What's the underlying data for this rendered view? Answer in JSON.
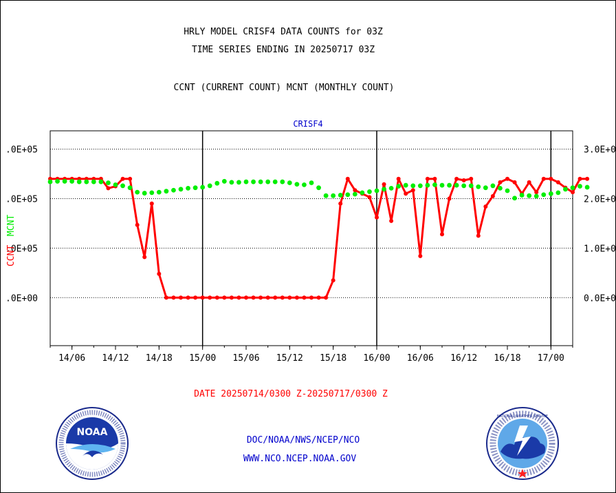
{
  "header": {
    "title_line1": "HRLY MODEL CRISF4 DATA COUNTS for 03Z",
    "title_line2": "TIME SERIES ENDING IN 20250717 03Z",
    "subtitle": "CCNT (CURRENT COUNT) MCNT (MONTHLY COUNT)"
  },
  "footer": {
    "date_range": "DATE 20250714/0300 Z-20250717/0300 Z",
    "org_path": "DOC/NOAA/NWS/NCEP/NCO",
    "website": "WWW.NCO.NCEP.NOAA.GOV"
  },
  "logos": {
    "left_text": "NOAA",
    "right_text": "NATIONAL WEATHER SERVICE"
  },
  "colors": {
    "ccnt": "#ff0000",
    "mcnt": "#00ee00",
    "title": "#000000",
    "station": "#0000cc",
    "footer_date": "#ff0000",
    "footer_links": "#0000cc"
  },
  "chart_data": {
    "type": "line",
    "title": "CRISF4",
    "ylabel_left": "CCNT",
    "ylabel_right": "MCNT",
    "x_start_hour": 3,
    "x_end_hour": 75,
    "xticks": [
      {
        "hour": 6,
        "label": "14/06"
      },
      {
        "hour": 12,
        "label": "14/12"
      },
      {
        "hour": 18,
        "label": "14/18"
      },
      {
        "hour": 24,
        "label": "15/00"
      },
      {
        "hour": 30,
        "label": "15/06"
      },
      {
        "hour": 36,
        "label": "15/12"
      },
      {
        "hour": 42,
        "label": "15/18"
      },
      {
        "hour": 48,
        "label": "16/00"
      },
      {
        "hour": 54,
        "label": "16/06"
      },
      {
        "hour": 60,
        "label": "16/12"
      },
      {
        "hour": 66,
        "label": "16/18"
      },
      {
        "hour": 72,
        "label": "17/00"
      }
    ],
    "day_lines": [
      24,
      48,
      72
    ],
    "yticks_left": [
      {
        "v": 0,
        "label": ".0E+00"
      },
      {
        "v": 100000,
        "label": ".0E+05"
      },
      {
        "v": 200000,
        "label": ".0E+05"
      },
      {
        "v": 300000,
        "label": ".0E+05"
      }
    ],
    "yticks_right": [
      {
        "v": 0,
        "label": "0.0E+0"
      },
      {
        "v": 100000,
        "label": "1.0E+0"
      },
      {
        "v": 200000,
        "label": "2.0E+0"
      },
      {
        "v": 300000,
        "label": "3.0E+0"
      }
    ],
    "ylim": [
      -97000,
      337000
    ],
    "grid": true,
    "series": [
      {
        "name": "CCNT",
        "color": "#ff0000",
        "values": [
          240000,
          240000,
          240000,
          240000,
          240000,
          240000,
          240000,
          240000,
          221000,
          225000,
          240000,
          240000,
          147000,
          82000,
          190000,
          48000,
          0,
          0,
          0,
          0,
          0,
          0,
          0,
          0,
          0,
          0,
          0,
          0,
          0,
          0,
          0,
          0,
          0,
          0,
          0,
          0,
          0,
          0,
          0,
          35000,
          190000,
          240000,
          217000,
          210000,
          203000,
          162000,
          229000,
          155000,
          240000,
          210000,
          217000,
          84000,
          240000,
          240000,
          128000,
          200000,
          240000,
          237000,
          240000,
          125000,
          184000,
          205000,
          233000,
          240000,
          233000,
          210000,
          233000,
          213000,
          240000,
          240000,
          233000,
          222000,
          213000,
          240000,
          240000
        ]
      },
      {
        "name": "MCNT",
        "color": "#00ee00",
        "values": [
          234000,
          235000,
          235000,
          235000,
          234000,
          234000,
          234000,
          234000,
          232000,
          228000,
          226000,
          222000,
          213000,
          211000,
          212000,
          213000,
          215000,
          217000,
          219000,
          221000,
          222000,
          223000,
          226000,
          231000,
          235000,
          233000,
          233000,
          234000,
          234000,
          234000,
          234000,
          234000,
          234000,
          232000,
          229000,
          228000,
          232000,
          222000,
          206000,
          206000,
          207000,
          208000,
          209000,
          212000,
          214000,
          216000,
          219000,
          221000,
          225000,
          227000,
          226000,
          226000,
          227000,
          228000,
          227000,
          227000,
          227000,
          226000,
          226000,
          224000,
          222000,
          226000,
          221000,
          216000,
          201000,
          207000,
          206000,
          205000,
          208000,
          210000,
          212000,
          219000,
          222000,
          225000,
          223000
        ]
      }
    ]
  }
}
